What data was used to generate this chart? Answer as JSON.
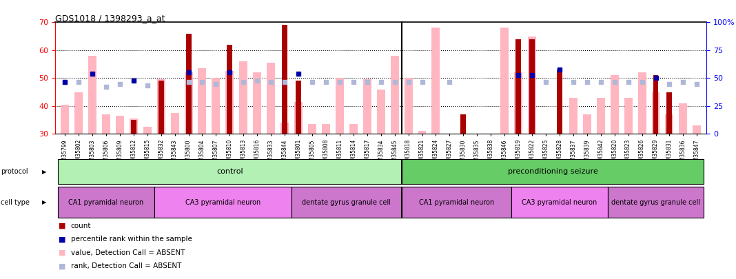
{
  "title": "GDS1018 / 1398293_a_at",
  "ylim_left": [
    30,
    70
  ],
  "ylim_right": [
    0,
    100
  ],
  "yticks_left": [
    30,
    40,
    50,
    60,
    70
  ],
  "yticks_right": [
    0,
    25,
    50,
    75,
    100
  ],
  "ytick_labels_right": [
    "0",
    "25",
    "50",
    "75",
    "100%"
  ],
  "samples": [
    "GSM35799",
    "GSM35802",
    "GSM35803",
    "GSM35806",
    "GSM35809",
    "GSM35812",
    "GSM35815",
    "GSM35832",
    "GSM35843",
    "GSM35800",
    "GSM35804",
    "GSM35807",
    "GSM35810",
    "GSM35813",
    "GSM35816",
    "GSM35833",
    "GSM35844",
    "GSM35801",
    "GSM35805",
    "GSM35808",
    "GSM35811",
    "GSM35814",
    "GSM35817",
    "GSM35834",
    "GSM35845",
    "GSM35818",
    "GSM35821",
    "GSM35824",
    "GSM35827",
    "GSM35830",
    "GSM35835",
    "GSM35838",
    "GSM35846",
    "GSM35819",
    "GSM35822",
    "GSM35825",
    "GSM35828",
    "GSM35837",
    "GSM35839",
    "GSM35842",
    "GSM35820",
    "GSM35823",
    "GSM35826",
    "GSM35829",
    "GSM35831",
    "GSM35836",
    "GSM35847"
  ],
  "count_values": [
    null,
    null,
    null,
    null,
    null,
    35,
    null,
    49,
    null,
    66,
    null,
    null,
    62,
    null,
    null,
    null,
    69,
    49,
    null,
    null,
    null,
    null,
    null,
    null,
    null,
    null,
    null,
    null,
    null,
    37,
    null,
    null,
    null,
    64,
    64,
    null,
    53,
    null,
    null,
    null,
    null,
    null,
    null,
    51,
    45,
    null,
    null
  ],
  "pink_values": [
    40.5,
    45,
    58,
    37,
    36.5,
    35.5,
    32.5,
    49.5,
    37.5,
    52,
    53.5,
    50,
    52.5,
    56,
    52,
    55.5,
    34,
    41.5,
    33.5,
    33.5,
    50,
    33.5,
    49.5,
    46,
    58,
    50,
    31,
    68,
    30,
    30,
    30,
    30,
    68,
    52,
    65,
    30,
    30,
    43,
    37,
    43,
    51,
    43,
    52,
    45,
    37,
    41,
    33
  ],
  "blue_sq_values": [
    48.5,
    null,
    51.5,
    null,
    null,
    49,
    null,
    null,
    null,
    52,
    null,
    null,
    52,
    null,
    null,
    null,
    null,
    51.5,
    null,
    null,
    null,
    null,
    null,
    null,
    null,
    null,
    null,
    null,
    null,
    null,
    null,
    null,
    null,
    51,
    51,
    null,
    53,
    null,
    null,
    null,
    null,
    null,
    null,
    50,
    null,
    null,
    null
  ],
  "light_blue_values": [
    48.5,
    48.5,
    null,
    47,
    48,
    null,
    47.5,
    null,
    null,
    48.5,
    48.5,
    48,
    null,
    48.5,
    49,
    48.5,
    48.5,
    null,
    48.5,
    48.5,
    48.5,
    48.5,
    48.5,
    48.5,
    48.5,
    48.5,
    48.5,
    null,
    48.5,
    null,
    null,
    null,
    null,
    null,
    null,
    48.5,
    null,
    48.5,
    48.5,
    48.5,
    48.5,
    48.5,
    48.5,
    null,
    48,
    48.5,
    48
  ],
  "protocol_bands": [
    {
      "label": "control",
      "start": 0,
      "end": 24,
      "color": "#b3f0b3"
    },
    {
      "label": "preconditioning seizure",
      "start": 25,
      "end": 46,
      "color": "#66cc66"
    }
  ],
  "celltype_bands": [
    {
      "label": "CA1 pyramidal neuron",
      "start": 0,
      "end": 6,
      "color": "#cc77cc"
    },
    {
      "label": "CA3 pyramidal neuron",
      "start": 7,
      "end": 16,
      "color": "#ee82ee"
    },
    {
      "label": "dentate gyrus granule cell",
      "start": 17,
      "end": 24,
      "color": "#cc77cc"
    },
    {
      "label": "CA1 pyramidal neuron",
      "start": 25,
      "end": 32,
      "color": "#cc77cc"
    },
    {
      "label": "CA3 pyramidal neuron",
      "start": 33,
      "end": 39,
      "color": "#ee82ee"
    },
    {
      "label": "dentate gyrus granule cell",
      "start": 40,
      "end": 46,
      "color": "#cc77cc"
    }
  ],
  "legend_items": [
    {
      "label": "count",
      "color": "#aa0000"
    },
    {
      "label": "percentile rank within the sample",
      "color": "#0000aa"
    },
    {
      "label": "value, Detection Call = ABSENT",
      "color": "#ffb6c1"
    },
    {
      "label": "rank, Detection Call = ABSENT",
      "color": "#b0b8d8"
    }
  ],
  "bar_width": 0.4,
  "pink_bar_width": 0.6,
  "bg_color": "#ffffff",
  "dark_red": "#aa0000",
  "pink": "#ffb6c1",
  "dark_blue": "#0000aa",
  "light_blue": "#b0b8d8",
  "sep_index": 24
}
